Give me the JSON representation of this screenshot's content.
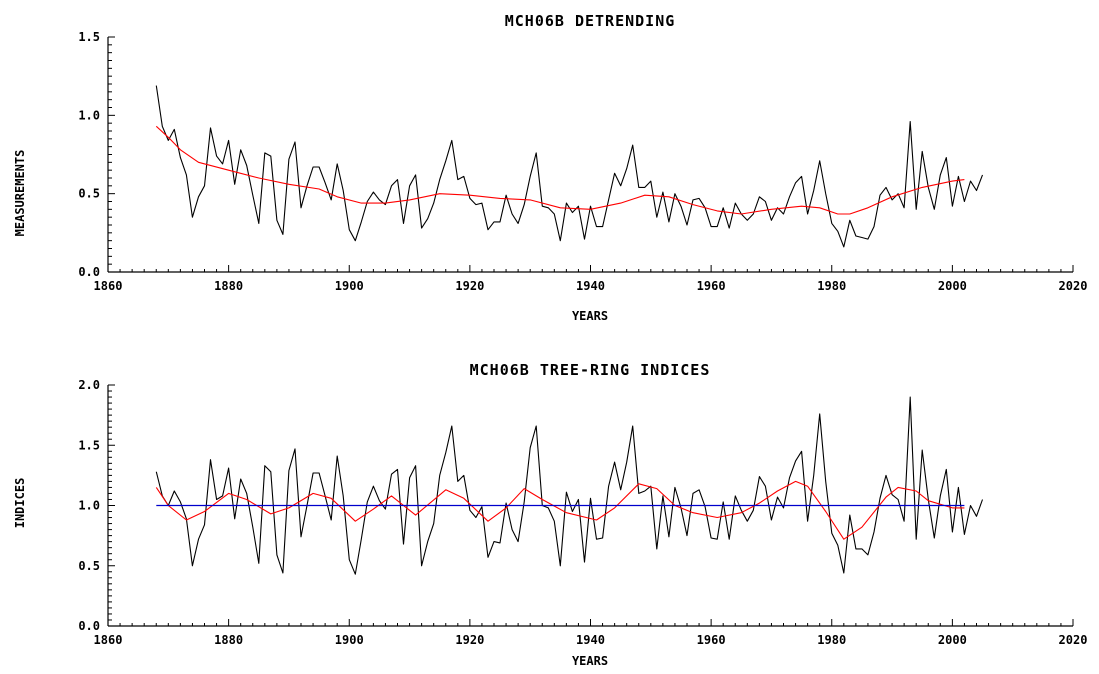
{
  "chart_data": [
    {
      "type": "line",
      "title": "MCH06B DETRENDING",
      "xlabel": "YEARS",
      "ylabel": "MEASUREMENTS",
      "xlim": [
        1860,
        2020
      ],
      "ylim": [
        0.0,
        1.5
      ],
      "xticks": [
        1860,
        1880,
        1900,
        1920,
        1940,
        1960,
        1980,
        2000,
        2020
      ],
      "xtick_labels": [
        "1860",
        "1880",
        "1900",
        "1920",
        "1940",
        "1960",
        "1980",
        "2000",
        "2020"
      ],
      "yticks": [
        0.0,
        0.5,
        1.0,
        1.5
      ],
      "ytick_labels": [
        "0.0",
        "0.5",
        "1.0",
        "1.5"
      ],
      "grid": false,
      "colors": {
        "raw": "#000000",
        "curve": "#ff0000"
      },
      "series": [
        {
          "key": "raw",
          "x_start": 1868,
          "values": [
            1.19,
            0.93,
            0.84,
            0.91,
            0.73,
            0.62,
            0.35,
            0.48,
            0.55,
            0.92,
            0.74,
            0.69,
            0.84,
            0.56,
            0.78,
            0.68,
            0.49,
            0.31,
            0.76,
            0.74,
            0.33,
            0.24,
            0.72,
            0.83,
            0.41,
            0.55,
            0.67,
            0.67,
            0.57,
            0.46,
            0.69,
            0.52,
            0.27,
            0.2,
            0.32,
            0.45,
            0.51,
            0.46,
            0.43,
            0.55,
            0.59,
            0.31,
            0.55,
            0.62,
            0.28,
            0.34,
            0.44,
            0.59,
            0.71,
            0.84,
            0.59,
            0.61,
            0.47,
            0.43,
            0.44,
            0.27,
            0.32,
            0.32,
            0.49,
            0.37,
            0.31,
            0.43,
            0.61,
            0.76,
            0.42,
            0.41,
            0.37,
            0.2,
            0.44,
            0.38,
            0.42,
            0.21,
            0.42,
            0.29,
            0.29,
            0.46,
            0.63,
            0.55,
            0.66,
            0.81,
            0.54,
            0.54,
            0.58,
            0.35,
            0.51,
            0.32,
            0.5,
            0.42,
            0.3,
            0.46,
            0.47,
            0.41,
            0.29,
            0.29,
            0.41,
            0.28,
            0.44,
            0.37,
            0.33,
            0.37,
            0.48,
            0.45,
            0.33,
            0.41,
            0.37,
            0.48,
            0.57,
            0.61,
            0.37,
            0.52,
            0.71,
            0.5,
            0.31,
            0.26,
            0.16,
            0.33,
            0.23,
            0.22,
            0.21,
            0.29,
            0.49,
            0.54,
            0.46,
            0.5,
            0.41,
            0.96,
            0.4,
            0.77,
            0.54,
            0.4,
            0.62,
            0.73,
            0.42,
            0.61,
            0.45,
            0.58,
            0.52,
            0.62
          ]
        },
        {
          "key": "curve",
          "x": [
            1868,
            1870,
            1872,
            1875,
            1880,
            1885,
            1890,
            1895,
            1898,
            1902,
            1906,
            1910,
            1915,
            1920,
            1925,
            1930,
            1935,
            1940,
            1945,
            1949,
            1953,
            1957,
            1961,
            1965,
            1970,
            1975,
            1978,
            1981,
            1983,
            1986,
            1990,
            1995,
            2000,
            2002
          ],
          "values": [
            0.93,
            0.86,
            0.78,
            0.7,
            0.65,
            0.6,
            0.56,
            0.53,
            0.48,
            0.44,
            0.44,
            0.46,
            0.5,
            0.49,
            0.47,
            0.46,
            0.41,
            0.4,
            0.44,
            0.49,
            0.48,
            0.43,
            0.39,
            0.37,
            0.4,
            0.42,
            0.41,
            0.37,
            0.37,
            0.41,
            0.48,
            0.54,
            0.58,
            0.59
          ]
        }
      ]
    },
    {
      "type": "line",
      "title": "MCH06B TREE-RING INDICES",
      "xlabel": "YEARS",
      "ylabel": "INDICES",
      "xlim": [
        1860,
        2020
      ],
      "ylim": [
        0.0,
        2.0
      ],
      "xticks": [
        1860,
        1880,
        1900,
        1920,
        1940,
        1960,
        1980,
        2000,
        2020
      ],
      "xtick_labels": [
        "1860",
        "1880",
        "1900",
        "1920",
        "1940",
        "1960",
        "1980",
        "2000",
        "2020"
      ],
      "yticks": [
        0.0,
        0.5,
        1.0,
        1.5,
        2.0
      ],
      "ytick_labels": [
        "0.0",
        "0.5",
        "1.0",
        "1.5",
        "2.0"
      ],
      "grid": false,
      "colors": {
        "raw": "#000000",
        "curve": "#ff0000",
        "reference": "#0000cc"
      },
      "series": [
        {
          "key": "raw",
          "x_start": 1868,
          "values": [
            1.28,
            1.08,
            1.0,
            1.12,
            1.03,
            0.89,
            0.5,
            0.72,
            0.84,
            1.38,
            1.05,
            1.08,
            1.31,
            0.89,
            1.22,
            1.1,
            0.82,
            0.52,
            1.33,
            1.28,
            0.59,
            0.44,
            1.29,
            1.47,
            0.74,
            1.0,
            1.27,
            1.27,
            1.08,
            0.88,
            1.41,
            1.08,
            0.55,
            0.43,
            0.72,
            1.03,
            1.16,
            1.04,
            0.97,
            1.26,
            1.3,
            0.68,
            1.23,
            1.33,
            0.5,
            0.7,
            0.85,
            1.25,
            1.44,
            1.66,
            1.2,
            1.25,
            0.96,
            0.9,
            0.99,
            0.57,
            0.7,
            0.69,
            1.02,
            0.8,
            0.7,
            1.03,
            1.48,
            1.66,
            1.0,
            0.98,
            0.87,
            0.5,
            1.11,
            0.95,
            1.05,
            0.53,
            1.06,
            0.72,
            0.73,
            1.16,
            1.36,
            1.13,
            1.36,
            1.66,
            1.1,
            1.12,
            1.16,
            0.64,
            1.08,
            0.74,
            1.15,
            0.98,
            0.75,
            1.1,
            1.13,
            0.99,
            0.73,
            0.72,
            1.03,
            0.72,
            1.08,
            0.96,
            0.87,
            0.96,
            1.24,
            1.16,
            0.88,
            1.07,
            0.98,
            1.23,
            1.37,
            1.45,
            0.87,
            1.25,
            1.76,
            1.2,
            0.77,
            0.67,
            0.44,
            0.92,
            0.64,
            0.64,
            0.59,
            0.78,
            1.06,
            1.25,
            1.09,
            1.05,
            0.87,
            1.9,
            0.72,
            1.46,
            1.05,
            0.73,
            1.08,
            1.3,
            0.78,
            1.15,
            0.76,
            1.0,
            0.91,
            1.05
          ]
        },
        {
          "key": "curve",
          "x": [
            1868,
            1870,
            1873,
            1876,
            1880,
            1883,
            1887,
            1890,
            1894,
            1897,
            1901,
            1904,
            1907,
            1911,
            1916,
            1919,
            1923,
            1926,
            1929,
            1932,
            1936,
            1941,
            1944,
            1948,
            1951,
            1954,
            1957,
            1961,
            1965,
            1968,
            1971,
            1974,
            1976,
            1979,
            1982,
            1985,
            1989,
            1991,
            1994,
            1996,
            2000,
            2002
          ],
          "values": [
            1.15,
            1.0,
            0.88,
            0.95,
            1.1,
            1.05,
            0.93,
            0.98,
            1.1,
            1.06,
            0.87,
            0.97,
            1.08,
            0.92,
            1.13,
            1.06,
            0.87,
            0.98,
            1.14,
            1.05,
            0.94,
            0.88,
            0.98,
            1.18,
            1.14,
            1.0,
            0.94,
            0.9,
            0.94,
            1.02,
            1.12,
            1.2,
            1.16,
            0.95,
            0.72,
            0.82,
            1.07,
            1.15,
            1.12,
            1.04,
            0.98,
            0.98
          ]
        },
        {
          "key": "reference",
          "x": [
            1868,
            2002
          ],
          "values": [
            1.0,
            1.0
          ]
        }
      ]
    }
  ]
}
